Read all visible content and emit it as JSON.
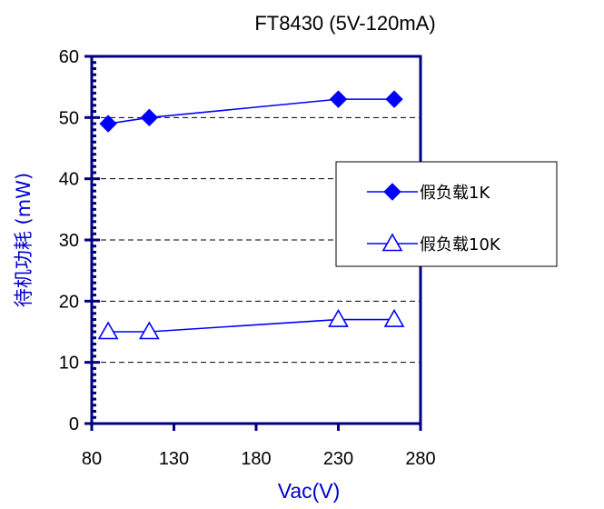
{
  "chart_data": {
    "type": "line",
    "title": "FT8430 (5V-120mA)",
    "xlabel": "Vac(V)",
    "ylabel": "待机功耗 (mW)",
    "xlim": [
      80,
      280
    ],
    "ylim": [
      0,
      60
    ],
    "x_ticks": [
      "80",
      "130",
      "180",
      "230",
      "280"
    ],
    "y_ticks": [
      "0",
      "10",
      "20",
      "30",
      "40",
      "50",
      "60"
    ],
    "grid": "horizontal dashed",
    "legend_position": "right",
    "series": [
      {
        "name": "假负载1K",
        "marker": "filled-diamond",
        "color": "#0000ff",
        "x": [
          90,
          115,
          230,
          264
        ],
        "y": [
          49,
          50,
          53,
          53
        ]
      },
      {
        "name": "假负载10K",
        "marker": "open-triangle",
        "color": "#0000ff",
        "x": [
          90,
          115,
          230,
          264
        ],
        "y": [
          15,
          15,
          17,
          17
        ]
      }
    ]
  }
}
